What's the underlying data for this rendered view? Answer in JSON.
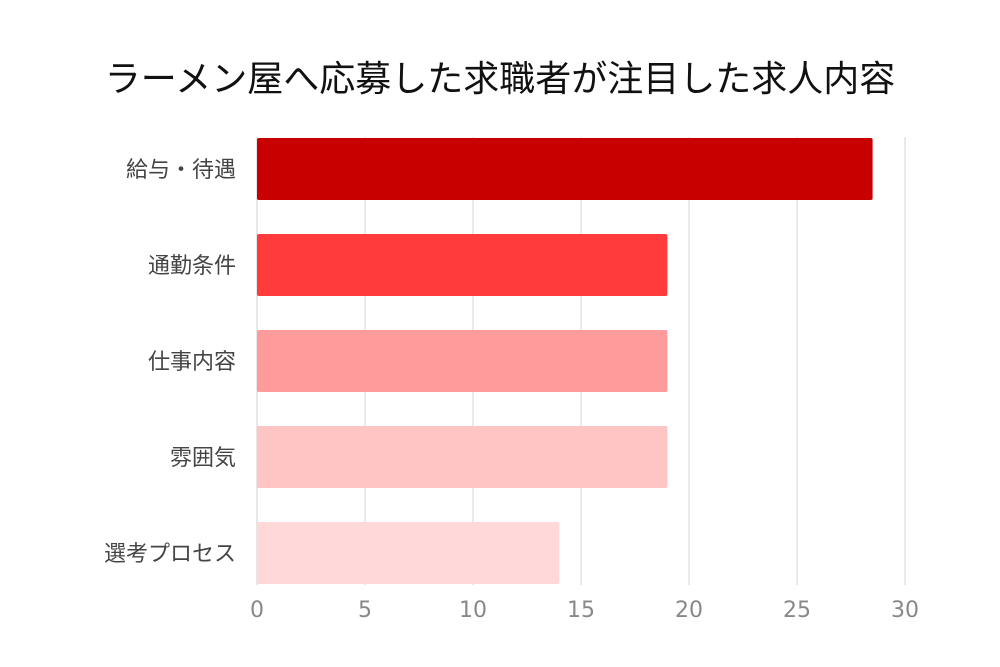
{
  "chart_data": {
    "type": "bar",
    "orientation": "horizontal",
    "title": "ラーメン屋へ応募した求職者が注目した求人内容",
    "xlabel": "",
    "ylabel": "",
    "categories": [
      "給与・待遇",
      "通勤条件",
      "仕事内容",
      "雰囲気",
      "選考プロセス"
    ],
    "values": [
      28.5,
      19,
      19,
      19,
      14
    ],
    "colors": [
      "#c80000",
      "#ff3b3b",
      "#ff9b9b",
      "#ffc4c4",
      "#ffd9d9"
    ],
    "xlim": [
      0,
      30
    ],
    "xticks": [
      0,
      5,
      10,
      15,
      20,
      25,
      30
    ],
    "grid": true
  }
}
